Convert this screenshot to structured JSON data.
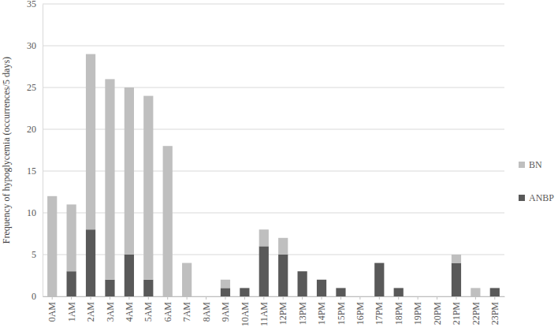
{
  "chart_data": {
    "type": "bar",
    "stacked": true,
    "grid": true,
    "legend": "right",
    "y_label": "Frequency of hypoglycemia (occurrences/5 days)",
    "categories": [
      "0AM",
      "1AM",
      "2AM",
      "3AM",
      "4AM",
      "5AM",
      "6AM",
      "7AM",
      "8AM",
      "9AM",
      "10AM",
      "11AM",
      "12PM",
      "13PM",
      "14PM",
      "15PM",
      "16PM",
      "17PM",
      "18PM",
      "19PM",
      "20PM",
      "21PM",
      "22PM",
      "23PM"
    ],
    "series": [
      {
        "name": "BN",
        "color": "#bfbfbf",
        "values": [
          12,
          8,
          21,
          24,
          20,
          22,
          18,
          4,
          0,
          1,
          0,
          2,
          2,
          0,
          0,
          0,
          0,
          0,
          0,
          0,
          0,
          1,
          1,
          0
        ]
      },
      {
        "name": "ANBP",
        "color": "#595959",
        "values": [
          0,
          3,
          8,
          2,
          5,
          2,
          0,
          0,
          0,
          1,
          1,
          6,
          5,
          3,
          2,
          1,
          0,
          4,
          1,
          0,
          0,
          4,
          0,
          1
        ]
      }
    ],
    "ylim": [
      0,
      35
    ],
    "yticks": [
      0,
      5,
      10,
      15,
      20,
      25,
      30,
      35
    ]
  }
}
